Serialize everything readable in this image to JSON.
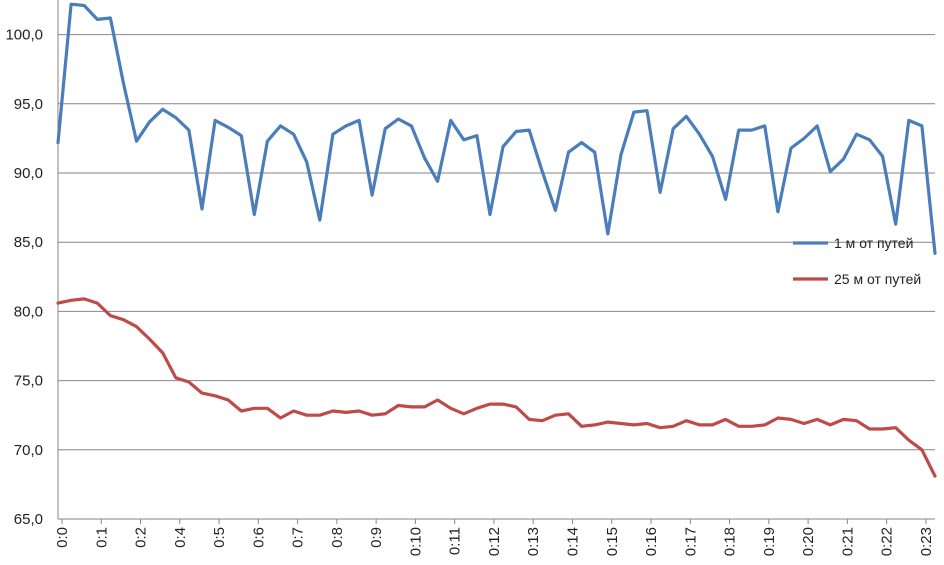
{
  "chart_data": {
    "type": "line",
    "title": "",
    "xlabel": "",
    "ylabel": "",
    "ylim": [
      65,
      102.5
    ],
    "yticks": [
      "65,0",
      "70,0",
      "75,0",
      "80,0",
      "85,0",
      "90,0",
      "95,0",
      "100,0"
    ],
    "ytick_values": [
      65,
      70,
      75,
      80,
      85,
      90,
      95,
      100
    ],
    "xticks": [
      "0:0",
      "0:1",
      "0:2",
      "0:4",
      "0:5",
      "0:6",
      "0:7",
      "0:8",
      "0:9",
      "0:10",
      "0:11",
      "0:12",
      "0:13",
      "0:14",
      "0:15",
      "0:16",
      "0:17",
      "0:18",
      "0:19",
      "0:20",
      "0:21",
      "0:22",
      "0:23"
    ],
    "grid": true,
    "legend_position": "right",
    "series": [
      {
        "name": "1 м от путей",
        "color": "#4a7ebb",
        "values": [
          92.2,
          102.2,
          102.1,
          101.1,
          101.2,
          96.5,
          92.3,
          93.7,
          94.6,
          94.0,
          93.1,
          87.4,
          93.8,
          93.3,
          92.7,
          87.0,
          92.3,
          93.4,
          92.8,
          90.8,
          86.6,
          92.8,
          93.4,
          93.8,
          88.4,
          93.2,
          93.9,
          93.4,
          91.1,
          89.4,
          93.8,
          92.4,
          92.7,
          87.0,
          91.9,
          93.0,
          93.1,
          90.1,
          87.3,
          91.5,
          92.2,
          91.5,
          85.6,
          91.3,
          94.4,
          94.5,
          88.6,
          93.2,
          94.1,
          92.8,
          91.2,
          88.1,
          93.1,
          93.1,
          93.4,
          87.2,
          91.8,
          92.5,
          93.4,
          90.1,
          91.0,
          92.8,
          92.4,
          91.2,
          86.3,
          93.8,
          93.4,
          84.2
        ]
      },
      {
        "name": "25 м от путей",
        "color": "#be4b48",
        "values": [
          80.6,
          80.8,
          80.9,
          80.6,
          79.7,
          79.4,
          78.9,
          78.0,
          77.0,
          75.2,
          74.9,
          74.1,
          73.9,
          73.6,
          72.8,
          73.0,
          73.0,
          72.3,
          72.8,
          72.5,
          72.5,
          72.8,
          72.7,
          72.8,
          72.5,
          72.6,
          73.2,
          73.1,
          73.1,
          73.6,
          73.0,
          72.6,
          73.0,
          73.3,
          73.3,
          73.1,
          72.2,
          72.1,
          72.5,
          72.6,
          71.7,
          71.8,
          72.0,
          71.9,
          71.8,
          71.9,
          71.6,
          71.7,
          72.1,
          71.8,
          71.8,
          72.2,
          71.7,
          71.7,
          71.8,
          72.3,
          72.2,
          71.9,
          72.2,
          71.8,
          72.2,
          72.1,
          71.5,
          71.5,
          71.6,
          70.7,
          70.0,
          68.1
        ]
      }
    ]
  }
}
